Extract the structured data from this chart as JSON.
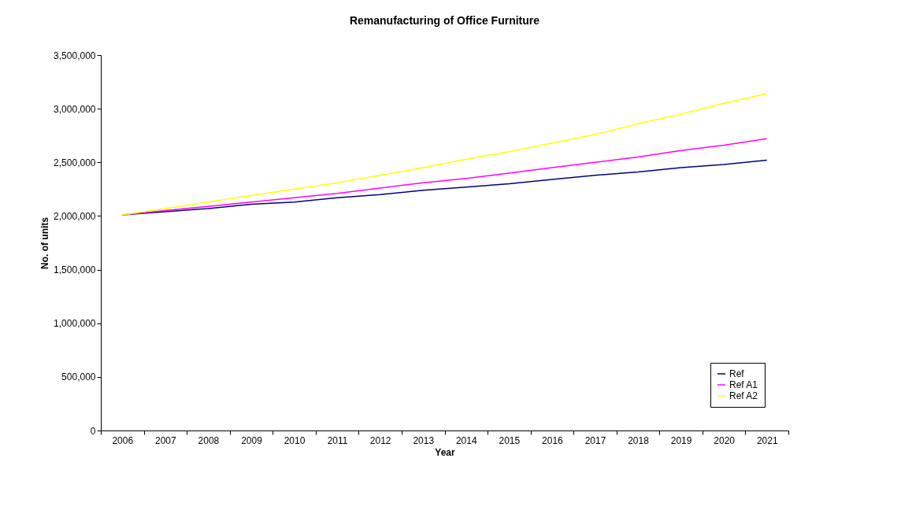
{
  "chart_data": {
    "type": "line",
    "title": "Remanufacturing of Office Furniture",
    "xlabel": "Year",
    "ylabel": "No. of units",
    "categories": [
      "2006",
      "2007",
      "2008",
      "2009",
      "2010",
      "2011",
      "2012",
      "2013",
      "2014",
      "2015",
      "2016",
      "2017",
      "2018",
      "2019",
      "2020",
      "2021"
    ],
    "series": [
      {
        "name": "Ref",
        "color": "#000080",
        "values": [
          2010000,
          2040000,
          2070000,
          2110000,
          2130000,
          2170000,
          2200000,
          2240000,
          2270000,
          2300000,
          2340000,
          2380000,
          2410000,
          2450000,
          2480000,
          2520000
        ]
      },
      {
        "name": "Ref A1",
        "color": "#ff00ff",
        "values": [
          2010000,
          2050000,
          2090000,
          2130000,
          2170000,
          2210000,
          2260000,
          2310000,
          2350000,
          2400000,
          2450000,
          2500000,
          2550000,
          2610000,
          2660000,
          2720000
        ]
      },
      {
        "name": "Ref A2",
        "color": "#ffff00",
        "values": [
          2010000,
          2070000,
          2130000,
          2190000,
          2250000,
          2310000,
          2380000,
          2450000,
          2530000,
          2600000,
          2680000,
          2760000,
          2860000,
          2950000,
          3050000,
          3140000
        ]
      }
    ],
    "ylim": [
      0,
      3500000
    ],
    "yticks": [
      0,
      {
        "value": 500000,
        "label": "500,000"
      },
      {
        "value": 1000000,
        "label": "1,000,000"
      },
      {
        "value": 1500000,
        "label": "1,500,000"
      },
      {
        "value": 2000000,
        "label": "2,000,000"
      },
      {
        "value": 2500000,
        "label": "2,500,000"
      },
      {
        "value": 3000000,
        "label": "3,000,000"
      },
      {
        "value": 3500000,
        "label": "3,500,000"
      }
    ],
    "grid": false,
    "legend": "bottom right",
    "marker": "none",
    "line_style": "solid"
  }
}
